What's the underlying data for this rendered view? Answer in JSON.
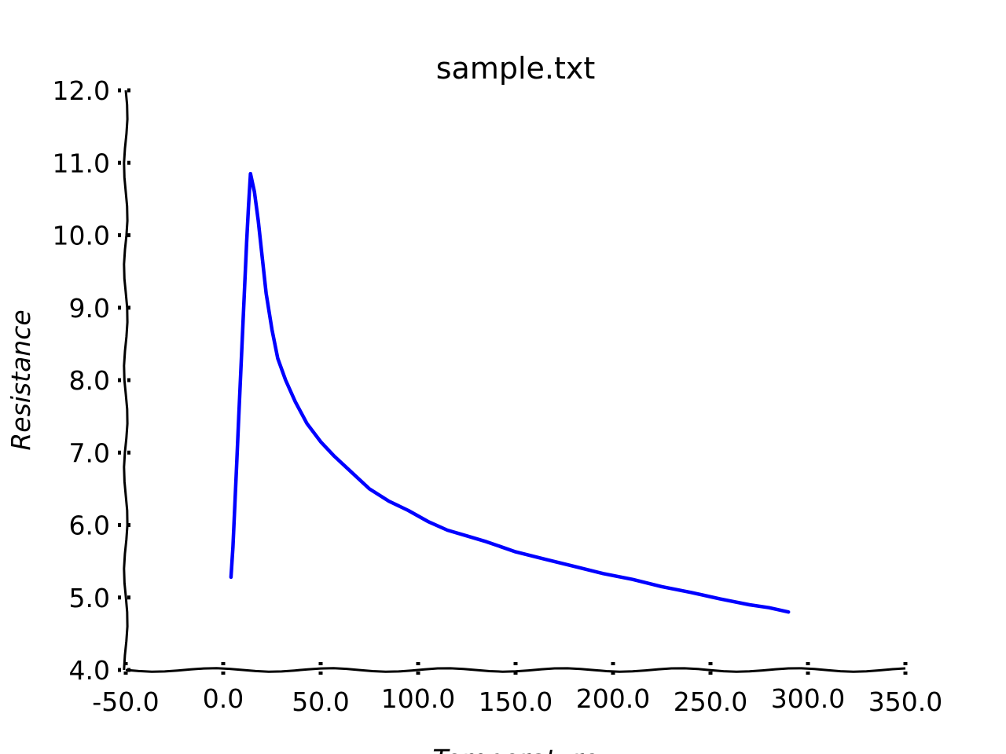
{
  "chart_data": {
    "type": "line",
    "title": "sample.txt",
    "xlabel": "Temperature",
    "ylabel": "Resistance",
    "xlim": [
      -50,
      350
    ],
    "ylim": [
      4,
      12
    ],
    "x_ticks": [
      "-50.0",
      "0.0",
      "50.0",
      "100.0",
      "150.0",
      "200.0",
      "250.0",
      "300.0",
      "350.0"
    ],
    "y_ticks": [
      "4.0",
      "5.0",
      "6.0",
      "7.0",
      "8.0",
      "9.0",
      "10.0",
      "11.0",
      "12.0"
    ],
    "grid": false,
    "line_color": "#0000ff",
    "series": [
      {
        "x": [
          4,
          5,
          6,
          7,
          8,
          9,
          10,
          11,
          12,
          13,
          14,
          16,
          18,
          20,
          22,
          25,
          28,
          32,
          37,
          43,
          50,
          57,
          65,
          75,
          85,
          95,
          105,
          115,
          125,
          135,
          150,
          165,
          180,
          195,
          210,
          225,
          240,
          255,
          270,
          280,
          290
        ],
        "y": [
          5.28,
          5.7,
          6.3,
          6.9,
          7.5,
          8.1,
          8.7,
          9.3,
          9.9,
          10.4,
          10.85,
          10.6,
          10.2,
          9.7,
          9.2,
          8.7,
          8.3,
          8.0,
          7.7,
          7.4,
          7.15,
          6.95,
          6.75,
          6.5,
          6.33,
          6.2,
          6.05,
          5.93,
          5.85,
          5.77,
          5.63,
          5.53,
          5.43,
          5.33,
          5.25,
          5.15,
          5.07,
          4.98,
          4.9,
          4.86,
          4.8
        ]
      }
    ]
  }
}
